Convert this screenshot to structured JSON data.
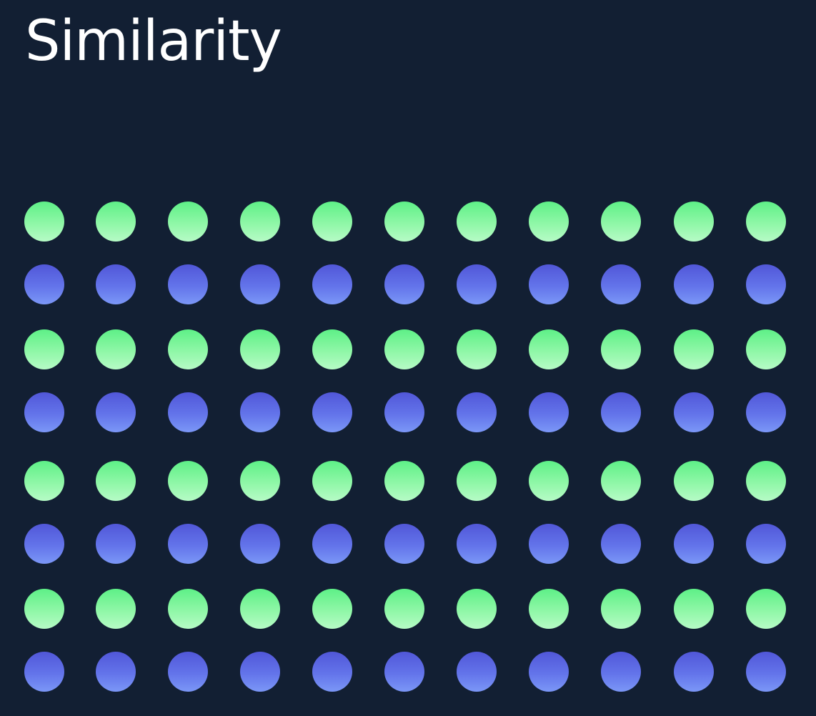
{
  "title": "Similarity",
  "colors": {
    "background": "#121f33",
    "title_text": "#ffffff",
    "green_top": "#5ef087",
    "green_bottom": "#b6fbc6",
    "blue_top": "#5157d8",
    "blue_bottom": "#7b97f7"
  },
  "dot_grid": {
    "rows": 8,
    "columns": 11,
    "row_pattern": [
      "green",
      "blue",
      "green",
      "blue",
      "green",
      "blue",
      "green",
      "blue"
    ]
  }
}
